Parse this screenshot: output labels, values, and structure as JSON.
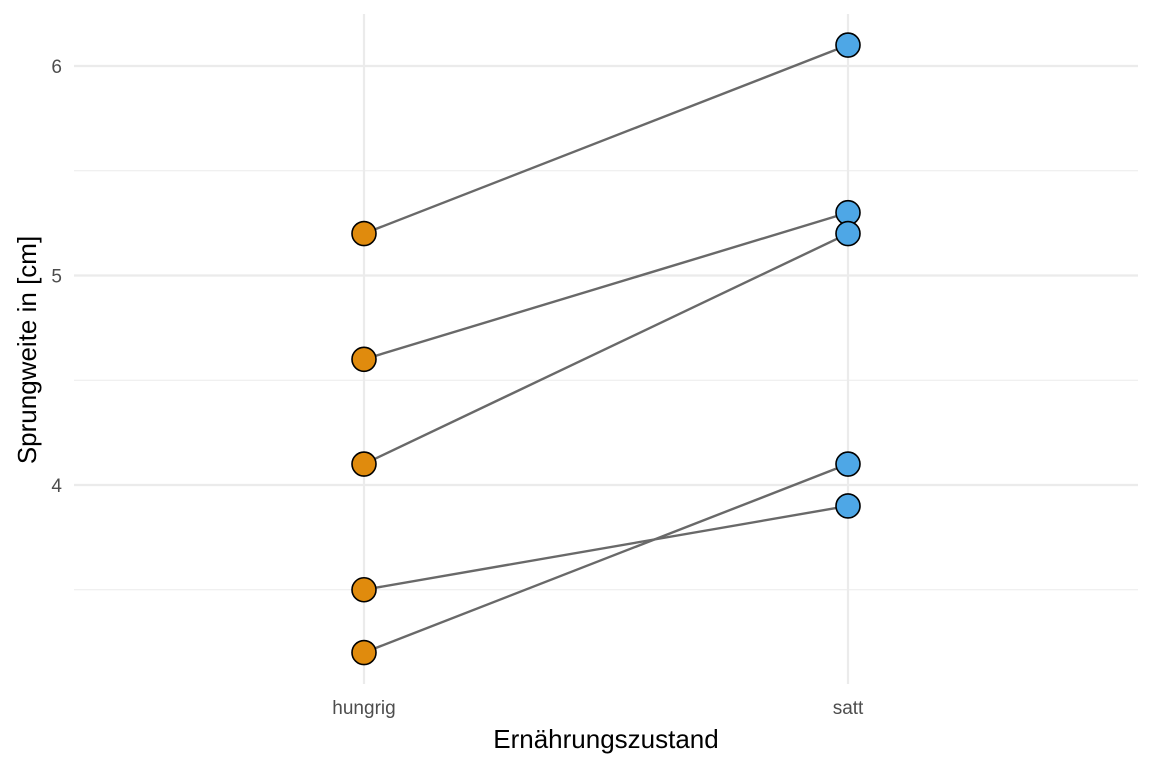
{
  "chart_data": {
    "type": "line",
    "xlabel": "Ernährungszustand",
    "ylabel": "Sprungweite in [cm]",
    "categories": [
      "hungrig",
      "satt"
    ],
    "y_ticks": [
      4,
      5,
      6
    ],
    "y_minor_ticks": [
      3.5,
      4.5,
      5.5
    ],
    "ylim": [
      3.1,
      6.25
    ],
    "grid": true,
    "colors": {
      "hungrig": "#e08b0d",
      "satt": "#4ea7e6"
    },
    "pairs": [
      {
        "hungrig": 5.2,
        "satt": 6.1
      },
      {
        "hungrig": 4.6,
        "satt": 5.3
      },
      {
        "hungrig": 4.1,
        "satt": 5.2
      },
      {
        "hungrig": 3.5,
        "satt": 3.9
      },
      {
        "hungrig": 3.2,
        "satt": 4.1
      }
    ]
  }
}
